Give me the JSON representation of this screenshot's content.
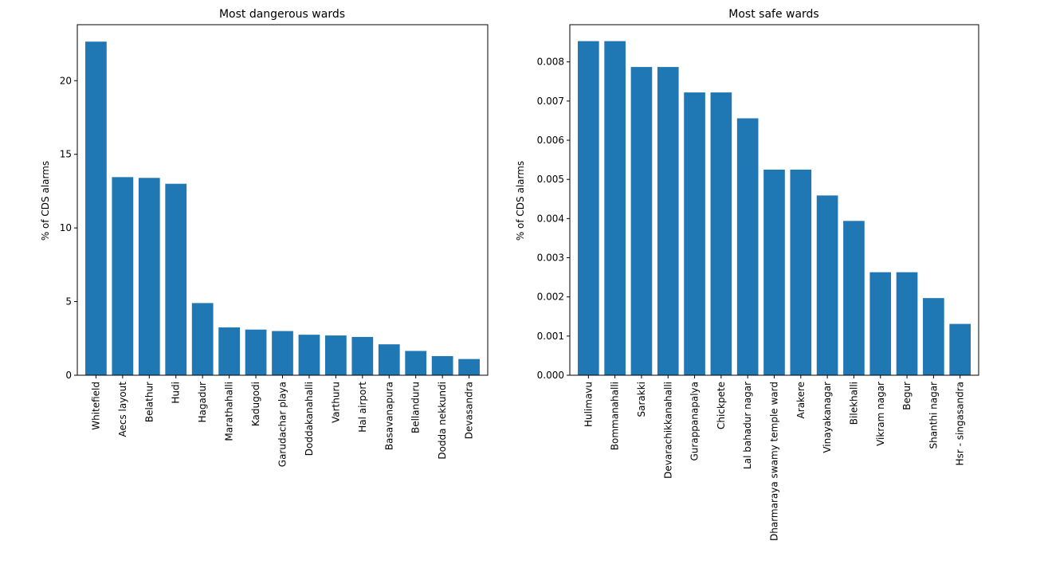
{
  "chart_data": [
    {
      "type": "bar",
      "title": "Most dangerous wards",
      "xlabel": "",
      "ylabel": "% of CDS alarms",
      "ylim": [
        0,
        23.8
      ],
      "yticks": [
        "0",
        "5",
        "10",
        "15",
        "20"
      ],
      "grid": false,
      "bar_color": "#1f77b4",
      "categories": [
        "Whitefield",
        "Aecs layout",
        "Belathur",
        "Hudi",
        "Hagadur",
        "Marathahalli",
        "Kadugodi",
        "Garudachar playa",
        "Doddakanahalli",
        "Varthuru",
        "Hal airport",
        "Basavanapura",
        "Bellanduru",
        "Dodda nekkundi",
        "Devasandra"
      ],
      "values": [
        22.65,
        13.45,
        13.4,
        13.0,
        4.9,
        3.25,
        3.1,
        3.0,
        2.75,
        2.7,
        2.6,
        2.1,
        1.65,
        1.3,
        1.1
      ]
    },
    {
      "type": "bar",
      "title": "Most safe wards",
      "xlabel": "",
      "ylabel": "% of CDS alarms",
      "ylim": [
        0,
        0.00895
      ],
      "yticks": [
        "0.000",
        "0.001",
        "0.002",
        "0.003",
        "0.004",
        "0.005",
        "0.006",
        "0.007",
        "0.008"
      ],
      "grid": false,
      "bar_color": "#1f77b4",
      "categories": [
        "Hulimavu",
        "Bommanahalli",
        "Sarakki",
        "Devarachikkanahalli",
        "Gurappanapalya",
        "Chickpete",
        "Lal bahadur nagar",
        "Dharmaraya swamy temple ward",
        "Arakere",
        "Vinayakanagar",
        "Bilekhalli",
        "Vikram nagar",
        "Begur",
        "Shanthi nagar",
        "Hsr - singasandra"
      ],
      "values": [
        0.00853,
        0.00853,
        0.00787,
        0.00787,
        0.00722,
        0.00722,
        0.00656,
        0.00525,
        0.00525,
        0.00459,
        0.00394,
        0.00263,
        0.00263,
        0.00197,
        0.00131
      ]
    }
  ]
}
